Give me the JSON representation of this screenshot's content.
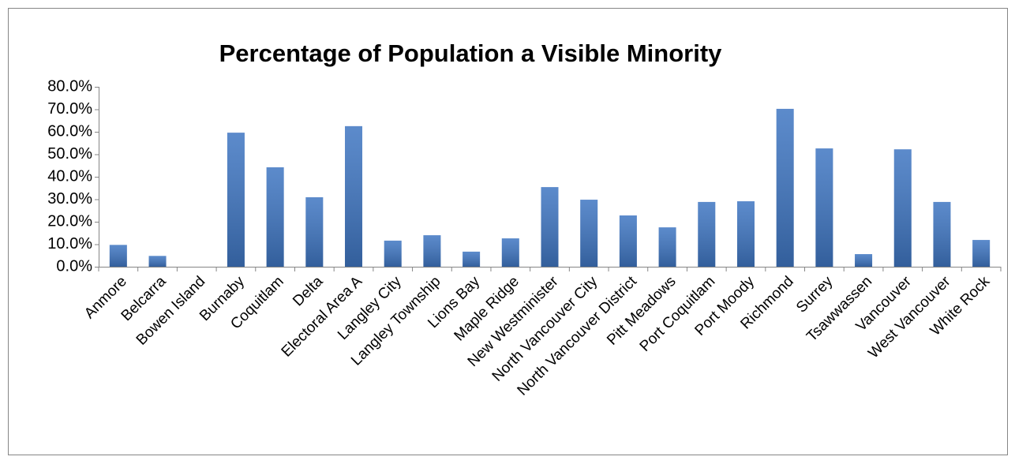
{
  "chart_data": {
    "type": "bar",
    "title": "Percentage of Population a Visible Minority",
    "categories": [
      "Anmore",
      "Belcarra",
      "Bowen Island",
      "Burnaby",
      "Coquitlam",
      "Delta",
      "Electoral Area A",
      "Langley City",
      "Langley Township",
      "Lions Bay",
      "Maple Ridge",
      "New Westminister",
      "North Vancouver City",
      "North Vancouver District",
      "Pitt Meadows",
      "Port Coquitlam",
      "Port Moody",
      "Richmond",
      "Surrey",
      "Tsawwassen",
      "Vancouver",
      "West Vancouver",
      "White Rock"
    ],
    "values": [
      9.7,
      4.8,
      0,
      59.6,
      44.2,
      30.9,
      62.5,
      11.6,
      14.0,
      6.7,
      12.6,
      35.4,
      29.8,
      22.8,
      17.5,
      28.8,
      29.1,
      70.2,
      52.6,
      5.6,
      52.2,
      28.8,
      11.9
    ],
    "color": "#3f76c2",
    "ylim": [
      0,
      80
    ],
    "yticks": [
      {
        "value": 0,
        "label": "0.0%"
      },
      {
        "value": 10,
        "label": "10.0%"
      },
      {
        "value": 20,
        "label": "20.0%"
      },
      {
        "value": 30,
        "label": "30.0%"
      },
      {
        "value": 40,
        "label": "40.0%"
      },
      {
        "value": 50,
        "label": "50.0%"
      },
      {
        "value": 60,
        "label": "60.0%"
      },
      {
        "value": 70,
        "label": "70.0%"
      },
      {
        "value": 80,
        "label": "80.0%"
      }
    ],
    "grid": false
  }
}
